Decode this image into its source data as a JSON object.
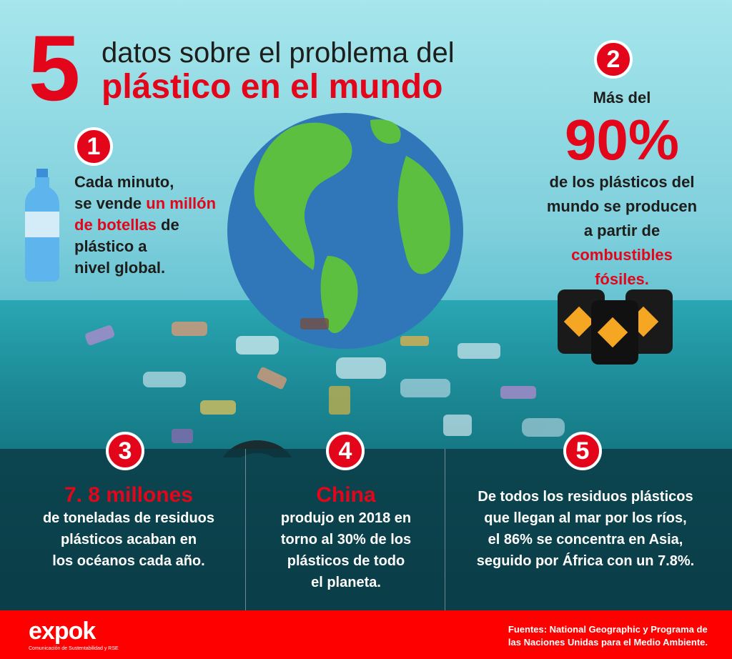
{
  "title": {
    "number": "5",
    "line1": "datos sobre el problema del",
    "line2": "plástico en el mundo"
  },
  "colors": {
    "accent": "#e3061b",
    "footer": "#ff0000",
    "panel": "#0a3741"
  },
  "facts": [
    {
      "badge": "1",
      "icon": "water-bottle-icon",
      "lines": [
        [
          {
            "t": "Cada minuto,"
          }
        ],
        [
          {
            "t": "se vende "
          },
          {
            "t": "un millón",
            "em": true
          }
        ],
        [
          {
            "t": "de botellas",
            "em": true
          },
          {
            "t": " de"
          }
        ],
        [
          {
            "t": "plástico a"
          }
        ],
        [
          {
            "t": "nivel global."
          }
        ]
      ]
    },
    {
      "badge": "2",
      "icon": "oil-barrel-icon",
      "pre": "Más del",
      "big": "90%",
      "lines": [
        [
          {
            "t": "de los plásticos del"
          }
        ],
        [
          {
            "t": "mundo se producen"
          }
        ],
        [
          {
            "t": "a partir de"
          }
        ],
        [
          {
            "t": "combustibles",
            "em": true
          }
        ],
        [
          {
            "t": "fósiles.",
            "em": true
          }
        ]
      ]
    },
    {
      "badge": "3",
      "head": "7. 8 millones",
      "lines": [
        [
          {
            "t": "de toneladas de residuos"
          }
        ],
        [
          {
            "t": "plásticos acaban en"
          }
        ],
        [
          {
            "t": "los océanos cada año."
          }
        ]
      ]
    },
    {
      "badge": "4",
      "head": "China",
      "lines": [
        [
          {
            "t": "produjo en 2018 en"
          }
        ],
        [
          {
            "t": "torno al "
          },
          {
            "t": "30%",
            "b": true
          },
          {
            "t": " de los"
          }
        ],
        [
          {
            "t": "plásticos de todo"
          }
        ],
        [
          {
            "t": "el planeta."
          }
        ]
      ]
    },
    {
      "badge": "5",
      "lines": [
        [
          {
            "t": "De todos los residuos plásticos"
          }
        ],
        [
          {
            "t": "que llegan al mar por los ríos,"
          }
        ],
        [
          {
            "t": "el "
          },
          {
            "t": "86%",
            "b": true
          },
          {
            "t": " se concentra en Asia,"
          }
        ],
        [
          {
            "t": "seguido por África con un "
          },
          {
            "t": "7.8%.",
            "b": true
          }
        ]
      ]
    }
  ],
  "footer": {
    "logo": "expok",
    "logo_tagline": "Comunicación de Sustentabilidad y RSE",
    "sources_line1": "Fuentes: National Geographic y Programa de",
    "sources_line2": "las Naciones Unidas para el Medio Ambiente."
  }
}
